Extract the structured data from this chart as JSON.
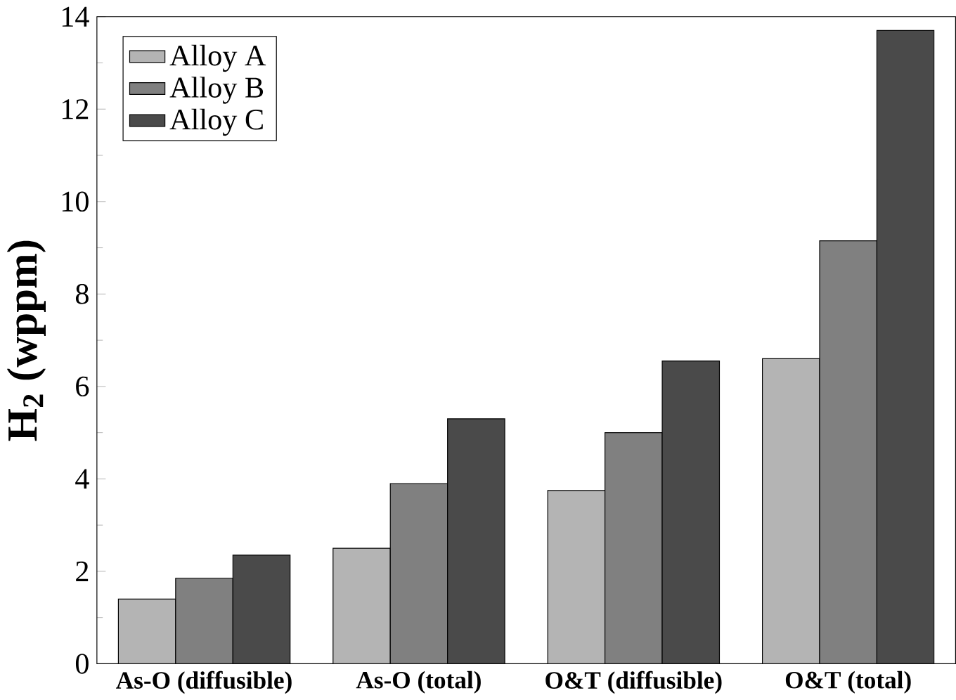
{
  "chart_data": {
    "type": "bar",
    "ylabel": "H$_{2}$ (wppm)",
    "categories": [
      "As-O (diffusible)",
      "As-O (total)",
      "O&T (diffusible)",
      "O&T (total)"
    ],
    "series": [
      {
        "name": "Alloy A",
        "color": "#b4b4b4",
        "values": [
          1.4,
          2.5,
          3.75,
          6.6
        ]
      },
      {
        "name": "Alloy B",
        "color": "#808080",
        "values": [
          1.85,
          3.9,
          5.0,
          9.15
        ]
      },
      {
        "name": "Alloy C",
        "color": "#4a4a4a",
        "values": [
          2.35,
          5.3,
          6.55,
          13.7
        ]
      }
    ],
    "ylim": [
      0,
      14
    ],
    "yticks": [
      0,
      2,
      4,
      6,
      8,
      10,
      12,
      14
    ],
    "grid": false,
    "legend": "top left"
  }
}
